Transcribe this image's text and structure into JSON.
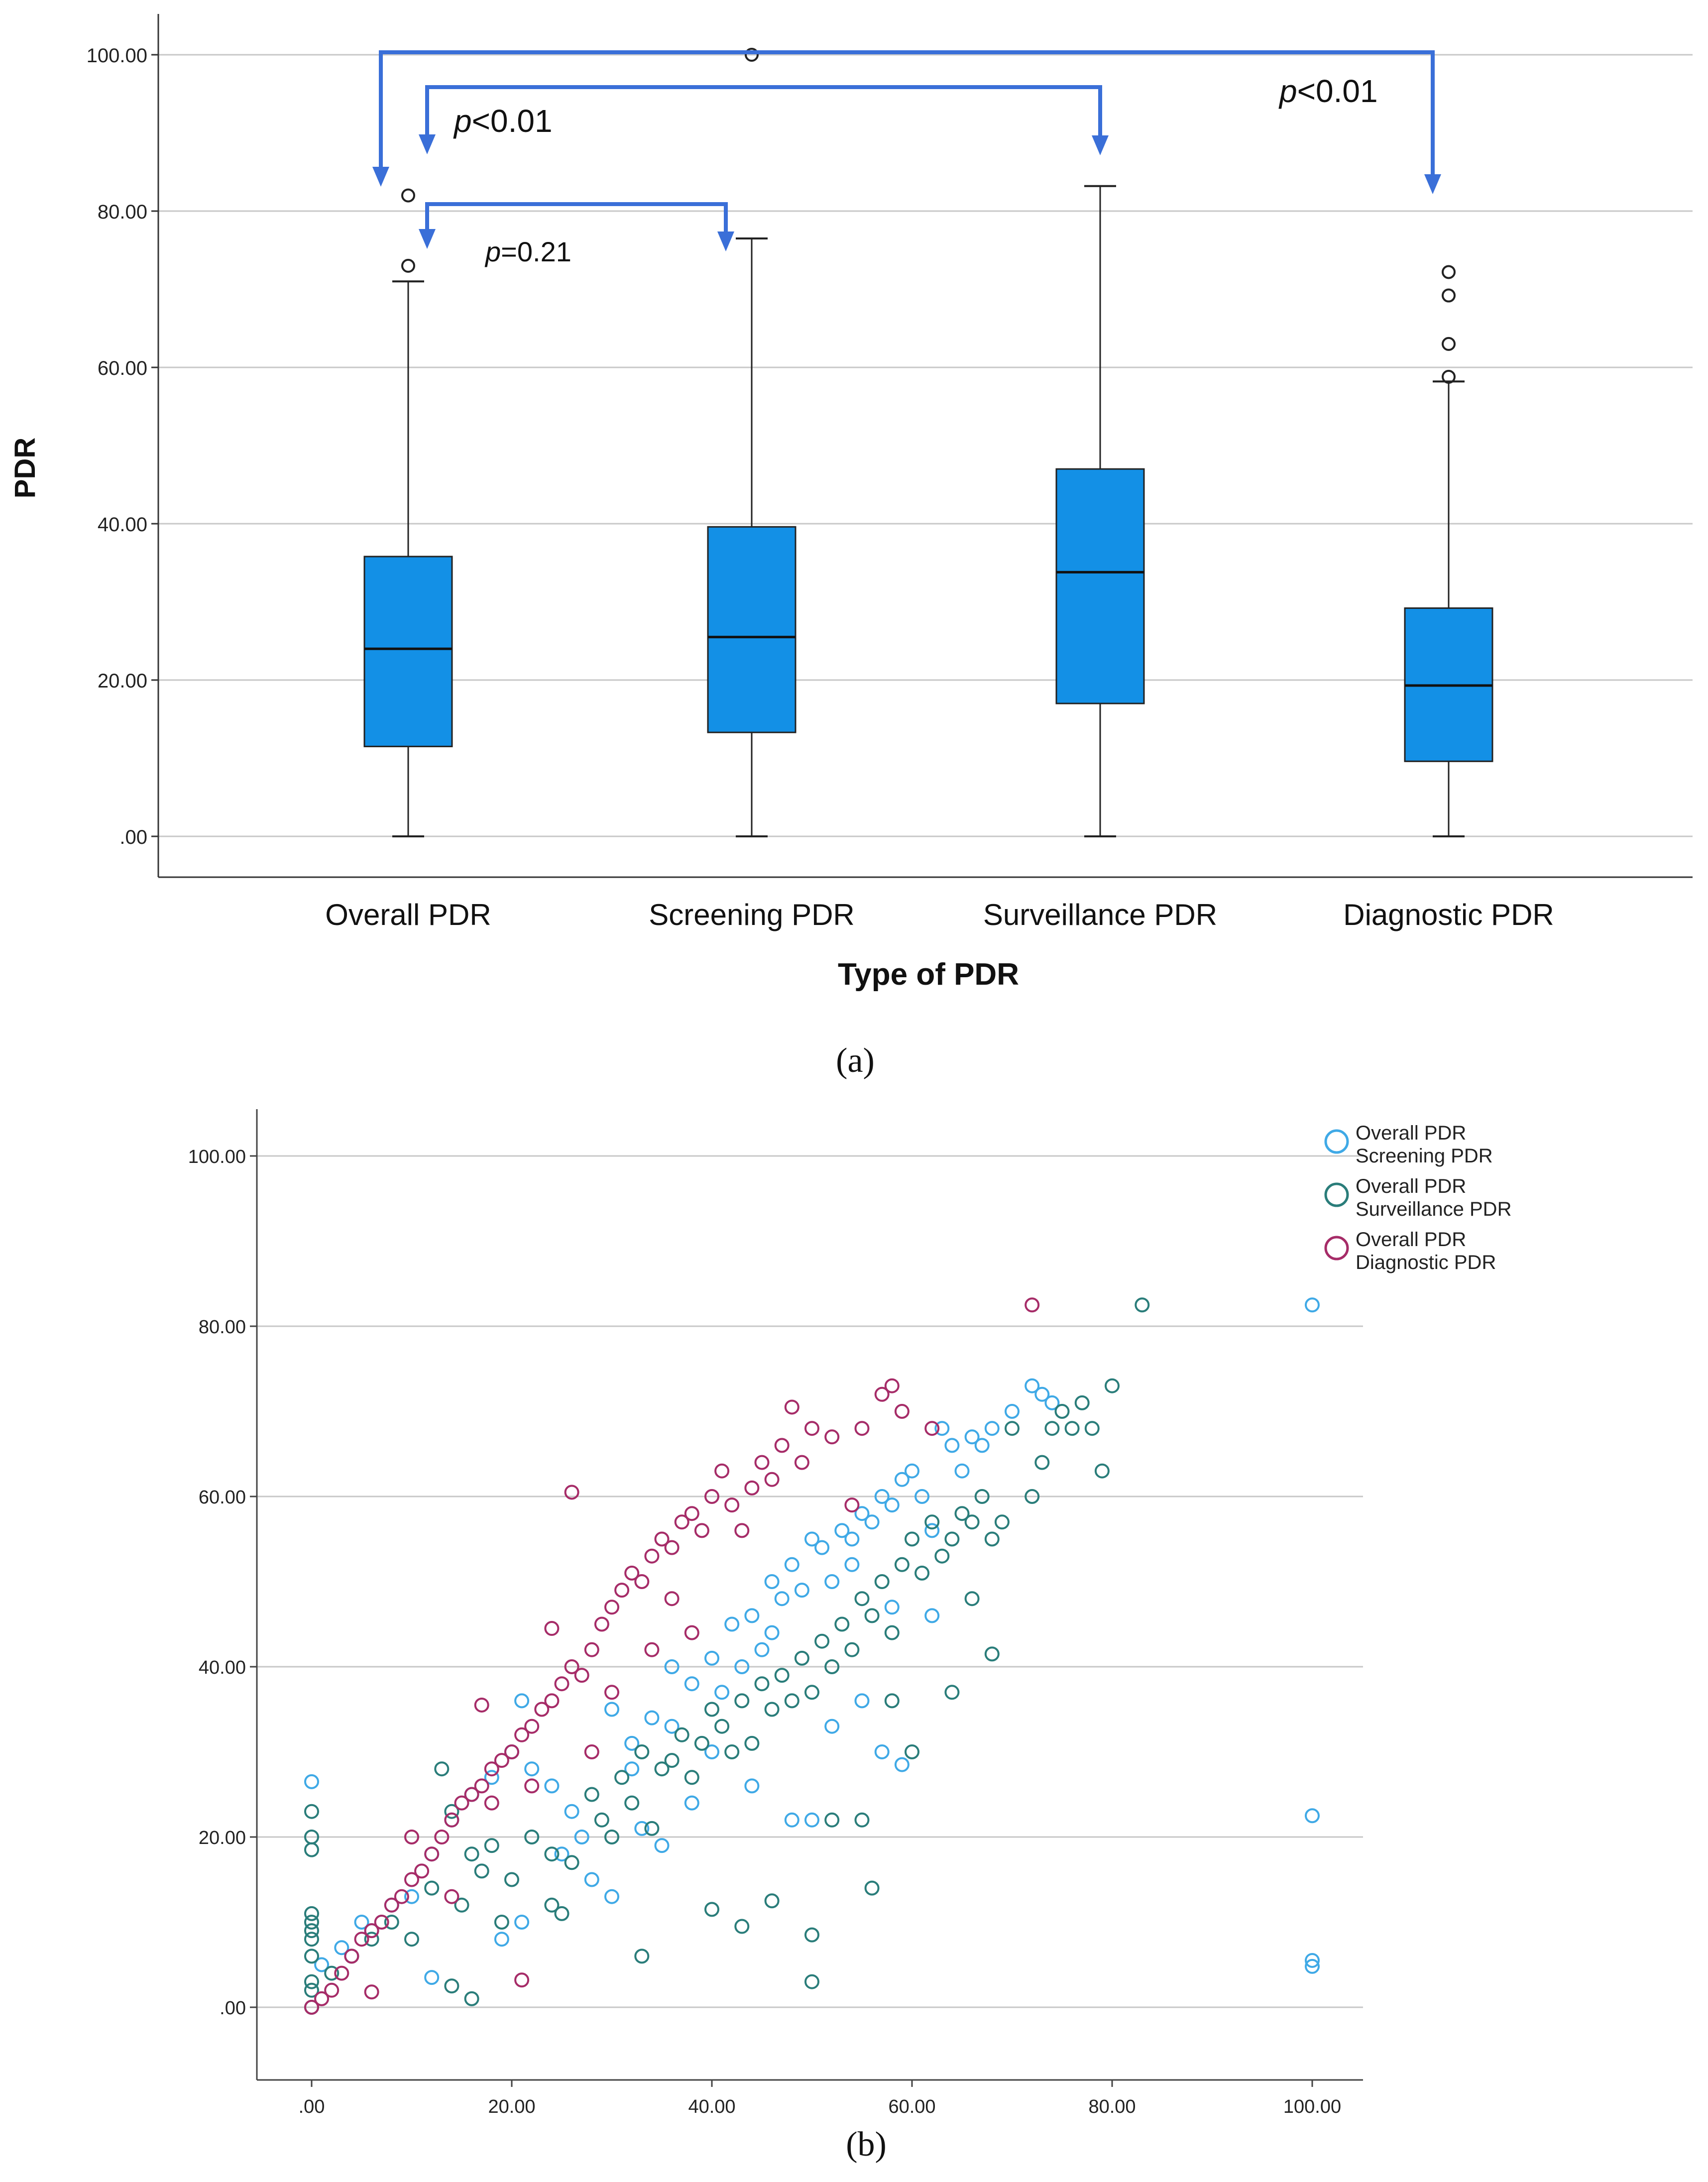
{
  "chart_data": [
    {
      "panel_label": "(a)",
      "type": "box",
      "title": "",
      "xlabel": "Type of PDR",
      "ylabel": "PDR",
      "ylim": [
        0,
        110
      ],
      "y_ticks": [
        ".00",
        "20.00",
        "40.00",
        "60.00",
        "80.00",
        "100.00"
      ],
      "y_tick_values": [
        0,
        20,
        40,
        60,
        80,
        100
      ],
      "grid": true,
      "box_color": "#1390e6",
      "categories": [
        "Overall PDR",
        "Screening PDR",
        "Surveillance PDR",
        "Diagnostic PDR"
      ],
      "boxes": [
        {
          "min": 0,
          "q1": 11.5,
          "median": 24.0,
          "q3": 35.8,
          "max": 71.0,
          "outliers": [
            73.0,
            82.0
          ]
        },
        {
          "min": 0,
          "q1": 13.3,
          "median": 25.5,
          "q3": 39.6,
          "max": 76.5,
          "outliers": [
            100.0
          ]
        },
        {
          "min": 0,
          "q1": 17.0,
          "median": 33.8,
          "q3": 47.0,
          "max": 83.2,
          "outliers": []
        },
        {
          "min": 0,
          "q1": 9.6,
          "median": 19.3,
          "q3": 29.2,
          "max": 58.2,
          "outliers": [
            58.8,
            63.0,
            69.2,
            72.2
          ]
        }
      ],
      "comparisons": [
        {
          "from": "Overall PDR",
          "to": "Diagnostic PDR",
          "p_italic": "p",
          "p_rest": "<0.01"
        },
        {
          "from": "Overall PDR",
          "to": "Surveillance PDR",
          "p_italic": "p",
          "p_rest": "<0.01"
        },
        {
          "from": "Overall PDR",
          "to": "Screening PDR",
          "p_italic": "p",
          "p_rest": "=0.21"
        }
      ],
      "arrow_color": "#3a6fd8"
    },
    {
      "panel_label": "(b)",
      "type": "scatter",
      "title": "",
      "xlabel": "",
      "ylabel": "",
      "xlim": [
        0,
        100
      ],
      "ylim": [
        -2,
        105
      ],
      "x_ticks": [
        ".00",
        "20.00",
        "40.00",
        "60.00",
        "80.00",
        "100.00"
      ],
      "x_tick_values": [
        0,
        20,
        40,
        60,
        80,
        100
      ],
      "y_ticks": [
        ".00",
        "20.00",
        "40.00",
        "60.00",
        "80.00",
        "100.00"
      ],
      "y_tick_values": [
        0,
        20,
        40,
        60,
        80,
        100
      ],
      "grid": true,
      "legend_position": "top-right",
      "series": [
        {
          "name": "Overall PDR Screening PDR",
          "legend_lines": [
            "Overall PDR",
            "Screening PDR"
          ],
          "color": "#3fa9e6",
          "points": [
            [
              0,
              26.5
            ],
            [
              1,
              5
            ],
            [
              3,
              7
            ],
            [
              5,
              10
            ],
            [
              6,
              9
            ],
            [
              8,
              12
            ],
            [
              10,
              13
            ],
            [
              12,
              18
            ],
            [
              14,
              22
            ],
            [
              16,
              25
            ],
            [
              18,
              27
            ],
            [
              20,
              30
            ],
            [
              21,
              36
            ],
            [
              22,
              28
            ],
            [
              24,
              26
            ],
            [
              26,
              23
            ],
            [
              28,
              15
            ],
            [
              30,
              13
            ],
            [
              32,
              31
            ],
            [
              34,
              34
            ],
            [
              36,
              33
            ],
            [
              38,
              38
            ],
            [
              40,
              41
            ],
            [
              41,
              37
            ],
            [
              42,
              45
            ],
            [
              43,
              40
            ],
            [
              44,
              46
            ],
            [
              45,
              42
            ],
            [
              46,
              50
            ],
            [
              47,
              48
            ],
            [
              48,
              52
            ],
            [
              49,
              49
            ],
            [
              50,
              55
            ],
            [
              51,
              54
            ],
            [
              52,
              50
            ],
            [
              53,
              56
            ],
            [
              54,
              55
            ],
            [
              55,
              58
            ],
            [
              56,
              57
            ],
            [
              57,
              60
            ],
            [
              58,
              59
            ],
            [
              59,
              62
            ],
            [
              60,
              63
            ],
            [
              61,
              60
            ],
            [
              62,
              56
            ],
            [
              63,
              68
            ],
            [
              64,
              66
            ],
            [
              65,
              63
            ],
            [
              66,
              67
            ],
            [
              67,
              66
            ],
            [
              68,
              68
            ],
            [
              70,
              70
            ],
            [
              72,
              73
            ],
            [
              73,
              72
            ],
            [
              74,
              71
            ],
            [
              19,
              8
            ],
            [
              21,
              10
            ],
            [
              25,
              18
            ],
            [
              27,
              20
            ],
            [
              33,
              21
            ],
            [
              35,
              19
            ],
            [
              38,
              24
            ],
            [
              44,
              26
            ],
            [
              48,
              22
            ],
            [
              50,
              22
            ],
            [
              52,
              33
            ],
            [
              55,
              36
            ],
            [
              57,
              30
            ],
            [
              59,
              28.5
            ],
            [
              100,
              82.5
            ],
            [
              100,
              22.5
            ],
            [
              100,
              5.5
            ],
            [
              100,
              4.8
            ],
            [
              12,
              3.5
            ],
            [
              30,
              35
            ],
            [
              32,
              28
            ],
            [
              36,
              40
            ],
            [
              40,
              30
            ],
            [
              46,
              44
            ],
            [
              54,
              52
            ],
            [
              58,
              47
            ],
            [
              62,
              46
            ]
          ]
        },
        {
          "name": "Overall PDR Surveillance PDR",
          "legend_lines": [
            "Overall PDR",
            "Surveillance PDR"
          ],
          "color": "#2a7d7a",
          "points": [
            [
              0,
              0
            ],
            [
              0,
              2
            ],
            [
              0,
              3
            ],
            [
              0,
              6
            ],
            [
              0,
              8
            ],
            [
              0,
              9
            ],
            [
              0,
              10
            ],
            [
              0,
              11
            ],
            [
              0,
              18.5
            ],
            [
              0,
              20
            ],
            [
              0,
              23
            ],
            [
              2,
              4
            ],
            [
              4,
              6
            ],
            [
              6,
              8
            ],
            [
              8,
              10
            ],
            [
              10,
              8
            ],
            [
              12,
              14
            ],
            [
              13,
              28
            ],
            [
              14,
              23
            ],
            [
              15,
              12
            ],
            [
              16,
              18
            ],
            [
              17,
              16
            ],
            [
              18,
              19
            ],
            [
              19,
              10
            ],
            [
              20,
              15
            ],
            [
              22,
              20
            ],
            [
              24,
              18
            ],
            [
              25,
              11
            ],
            [
              26,
              17
            ],
            [
              28,
              25
            ],
            [
              29,
              22
            ],
            [
              30,
              20
            ],
            [
              31,
              27
            ],
            [
              32,
              24
            ],
            [
              33,
              30
            ],
            [
              34,
              21
            ],
            [
              35,
              28
            ],
            [
              36,
              29
            ],
            [
              37,
              32
            ],
            [
              38,
              27
            ],
            [
              39,
              31
            ],
            [
              40,
              35
            ],
            [
              41,
              33
            ],
            [
              42,
              30
            ],
            [
              43,
              36
            ],
            [
              44,
              31
            ],
            [
              45,
              38
            ],
            [
              46,
              35
            ],
            [
              47,
              39
            ],
            [
              48,
              36
            ],
            [
              49,
              41
            ],
            [
              50,
              37
            ],
            [
              51,
              43
            ],
            [
              52,
              40
            ],
            [
              53,
              45
            ],
            [
              54,
              42
            ],
            [
              55,
              48
            ],
            [
              56,
              46
            ],
            [
              57,
              50
            ],
            [
              58,
              44
            ],
            [
              59,
              52
            ],
            [
              60,
              55
            ],
            [
              61,
              51
            ],
            [
              62,
              57
            ],
            [
              63,
              53
            ],
            [
              64,
              55
            ],
            [
              65,
              58
            ],
            [
              66,
              57
            ],
            [
              67,
              60
            ],
            [
              68,
              55
            ],
            [
              69,
              57
            ],
            [
              70,
              68
            ],
            [
              72,
              60
            ],
            [
              73,
              64
            ],
            [
              74,
              68
            ],
            [
              75,
              70
            ],
            [
              76,
              68
            ],
            [
              77,
              71
            ],
            [
              78,
              68
            ],
            [
              79,
              63
            ],
            [
              80,
              73
            ],
            [
              83,
              82.5
            ],
            [
              68,
              41.5
            ],
            [
              64,
              37
            ],
            [
              58,
              36
            ],
            [
              55,
              22
            ],
            [
              52,
              22
            ],
            [
              50,
              8.5
            ],
            [
              50,
              3
            ],
            [
              46,
              12.5
            ],
            [
              43,
              9.5
            ],
            [
              40,
              11.5
            ],
            [
              33,
              6
            ],
            [
              24,
              12
            ],
            [
              16,
              1
            ],
            [
              14,
              2.5
            ],
            [
              56,
              14
            ],
            [
              60,
              30
            ],
            [
              66,
              48
            ]
          ]
        },
        {
          "name": "Overall PDR Diagnostic PDR",
          "legend_lines": [
            "Overall PDR",
            "Diagnostic PDR"
          ],
          "color": "#a62c68",
          "points": [
            [
              0,
              0
            ],
            [
              1,
              1
            ],
            [
              2,
              2
            ],
            [
              3,
              4
            ],
            [
              4,
              6
            ],
            [
              5,
              8
            ],
            [
              6,
              9
            ],
            [
              7,
              10
            ],
            [
              8,
              12
            ],
            [
              9,
              13
            ],
            [
              10,
              15
            ],
            [
              11,
              16
            ],
            [
              12,
              18
            ],
            [
              13,
              20
            ],
            [
              14,
              22
            ],
            [
              15,
              24
            ],
            [
              16,
              25
            ],
            [
              17,
              26
            ],
            [
              18,
              28
            ],
            [
              19,
              29
            ],
            [
              20,
              30
            ],
            [
              21,
              32
            ],
            [
              22,
              33
            ],
            [
              23,
              35
            ],
            [
              24,
              36
            ],
            [
              25,
              38
            ],
            [
              26,
              40
            ],
            [
              27,
              39
            ],
            [
              28,
              42
            ],
            [
              29,
              45
            ],
            [
              30,
              47
            ],
            [
              31,
              49
            ],
            [
              32,
              51
            ],
            [
              33,
              50
            ],
            [
              34,
              53
            ],
            [
              35,
              55
            ],
            [
              36,
              54
            ],
            [
              37,
              57
            ],
            [
              38,
              58
            ],
            [
              39,
              56
            ],
            [
              40,
              60
            ],
            [
              41,
              63
            ],
            [
              42,
              59
            ],
            [
              43,
              56
            ],
            [
              44,
              61
            ],
            [
              45,
              64
            ],
            [
              46,
              62
            ],
            [
              47,
              66
            ],
            [
              48,
              70.5
            ],
            [
              49,
              64
            ],
            [
              50,
              68
            ],
            [
              52,
              67
            ],
            [
              54,
              59
            ],
            [
              55,
              68
            ],
            [
              57,
              72
            ],
            [
              58,
              73
            ],
            [
              59,
              70
            ],
            [
              62,
              68
            ],
            [
              72,
              82.5
            ],
            [
              26,
              60.5
            ],
            [
              24,
              44.5
            ],
            [
              17,
              35.5
            ],
            [
              21,
              3.2
            ],
            [
              6,
              1.8
            ],
            [
              10,
              20
            ],
            [
              14,
              13
            ],
            [
              18,
              24
            ],
            [
              22,
              26
            ],
            [
              28,
              30
            ],
            [
              30,
              37
            ],
            [
              34,
              42
            ],
            [
              38,
              44
            ],
            [
              36,
              48
            ]
          ]
        }
      ]
    }
  ]
}
